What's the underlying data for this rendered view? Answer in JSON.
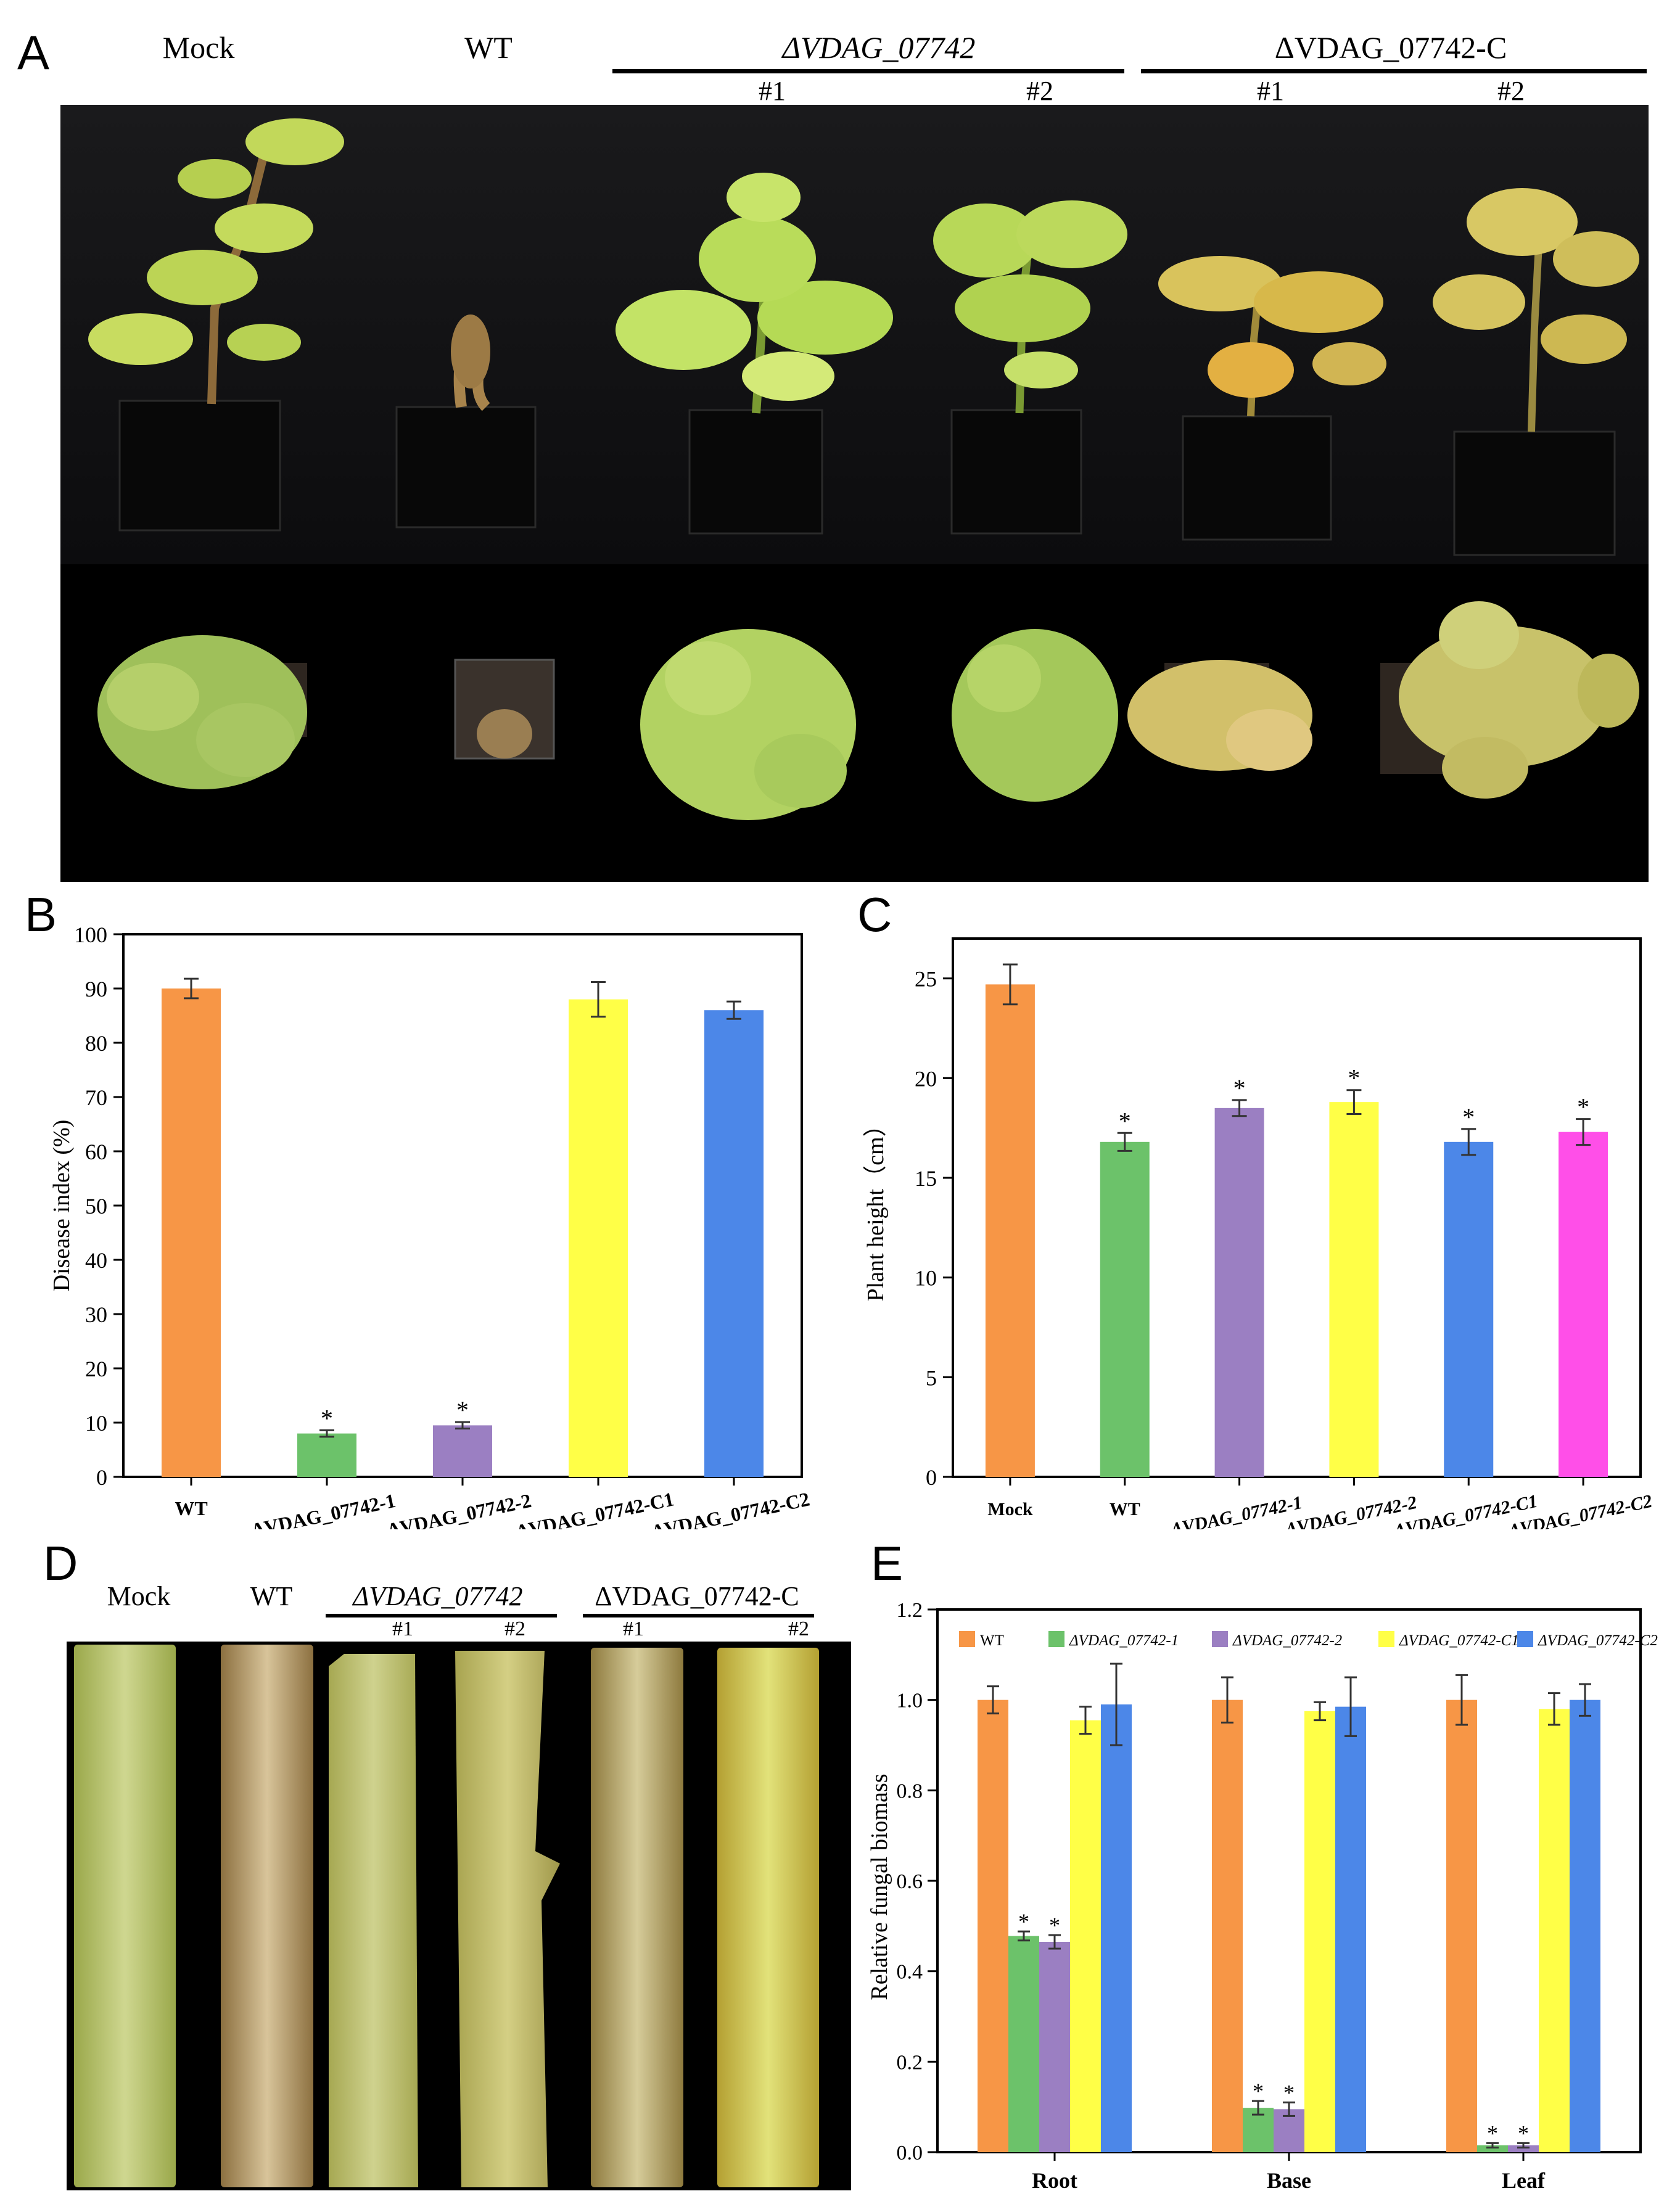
{
  "panelA": {
    "letter": "A",
    "labels": {
      "mock": "Mock",
      "wt": "WT",
      "mutant": "ΔVDAG_07742",
      "complement": "ΔVDAG_07742-C",
      "line1": "#1",
      "line2": "#2"
    }
  },
  "panelD": {
    "letter": "D",
    "labels": {
      "mock": "Mock",
      "wt": "WT",
      "mutant": "ΔVDAG_07742",
      "complement": "ΔVDAG_07742-C",
      "line1": "#1",
      "line2": "#2"
    }
  },
  "colors": {
    "orange": "#F79646",
    "green": "#6CC26A",
    "purple": "#9B7FC2",
    "yellow": "#FFFF47",
    "blue": "#4C87E8",
    "magenta": "#FF4FE8"
  },
  "chart_data": [
    {
      "id": "B",
      "letter": "B",
      "type": "bar",
      "ylabel": "Disease index (%)",
      "xlabel": "",
      "ylim": [
        0,
        100
      ],
      "yticks": [
        0,
        10,
        20,
        30,
        40,
        50,
        60,
        70,
        80,
        90,
        100
      ],
      "categories": [
        "WT",
        "ΔVDAG_07742-1",
        "ΔVDAG_07742-2",
        "ΔVDAG_07742-C1",
        "ΔVDAG_07742-C2"
      ],
      "values": [
        90,
        8,
        9.5,
        88,
        86
      ],
      "errors": [
        1.8,
        0.6,
        0.6,
        3.2,
        1.6
      ],
      "significance": [
        "",
        "*",
        "*",
        "",
        ""
      ],
      "colors": [
        "#F79646",
        "#6CC26A",
        "#9B7FC2",
        "#FFFF47",
        "#4C87E8"
      ]
    },
    {
      "id": "C",
      "letter": "C",
      "type": "bar",
      "ylabel": "Plant height（cm）",
      "xlabel": "",
      "ylim": [
        0,
        27
      ],
      "yticks": [
        0,
        5,
        10,
        15,
        20,
        25
      ],
      "categories": [
        "Mock",
        "WT",
        "ΔVDAG_07742-1",
        "ΔVDAG_07742-2",
        "ΔVDAG_07742-C1",
        "ΔVDAG_07742-C2"
      ],
      "values": [
        24.7,
        16.8,
        18.5,
        18.8,
        16.8,
        17.3
      ],
      "errors": [
        1.0,
        0.45,
        0.4,
        0.6,
        0.65,
        0.65
      ],
      "significance": [
        "",
        "*",
        "*",
        "*",
        "*",
        "*"
      ],
      "colors": [
        "#F79646",
        "#6CC26A",
        "#9B7FC2",
        "#FFFF47",
        "#4C87E8",
        "#FF4FE8"
      ]
    },
    {
      "id": "E",
      "letter": "E",
      "type": "bar",
      "ylabel": "Relative fungal biomass",
      "xlabel": "",
      "ylim": [
        0,
        1.2
      ],
      "yticks": [
        0.0,
        0.2,
        0.4,
        0.6,
        0.8,
        1.0,
        1.2
      ],
      "ytick_labels": [
        "0.0",
        "0.2",
        "0.4",
        "0.6",
        "0.8",
        "1.0",
        "1.2"
      ],
      "legend_position": "top",
      "categories": [
        "Root",
        "Base",
        "Leaf"
      ],
      "series": [
        {
          "name": "WT",
          "values": [
            1.0,
            1.0,
            1.0
          ],
          "errors": [
            0.03,
            0.05,
            0.055
          ],
          "significance": [
            "",
            "",
            ""
          ],
          "color": "#F79646"
        },
        {
          "name": "ΔVDAG_07742-1",
          "values": [
            0.478,
            0.098,
            0.015
          ],
          "errors": [
            0.01,
            0.015,
            0.005
          ],
          "significance": [
            "*",
            "*",
            "*"
          ],
          "color": "#6CC26A"
        },
        {
          "name": "ΔVDAG_07742-2",
          "values": [
            0.465,
            0.095,
            0.015
          ],
          "errors": [
            0.015,
            0.015,
            0.005
          ],
          "significance": [
            "*",
            "*",
            "*"
          ],
          "color": "#9B7FC2"
        },
        {
          "name": "ΔVDAG_07742-C1",
          "values": [
            0.955,
            0.975,
            0.98
          ],
          "errors": [
            0.03,
            0.02,
            0.035
          ],
          "significance": [
            "",
            "",
            ""
          ],
          "color": "#FFFF47"
        },
        {
          "name": "ΔVDAG_07742-C2",
          "values": [
            0.99,
            0.985,
            1.0
          ],
          "errors": [
            0.09,
            0.065,
            0.035
          ],
          "significance": [
            "",
            "",
            ""
          ],
          "color": "#4C87E8"
        }
      ]
    }
  ]
}
